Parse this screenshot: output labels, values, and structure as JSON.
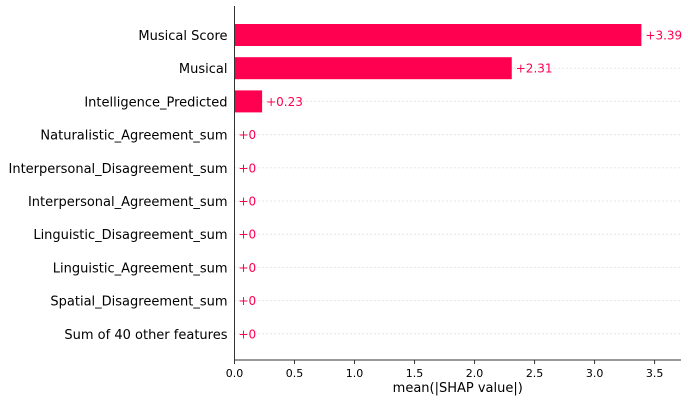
{
  "chart_data": {
    "type": "bar",
    "orientation": "horizontal",
    "categories": [
      "Musical Score",
      "Musical",
      "Intelligence_Predicted",
      "Naturalistic_Agreement_sum",
      "Interpersonal_Disagreement_sum",
      "Interpersonal_Agreement_sum",
      "Linguistic_Disagreement_sum",
      "Linguistic_Agreement_sum",
      "Spatial_Disagreement_sum",
      "Sum of 40 other features"
    ],
    "values": [
      3.39,
      2.31,
      0.23,
      0,
      0,
      0,
      0,
      0,
      0,
      0
    ],
    "value_labels": [
      "+3.39",
      "+2.31",
      "+0.23",
      "+0",
      "+0",
      "+0",
      "+0",
      "+0",
      "+0",
      "+0"
    ],
    "xlabel": "mean(|SHAP value|)",
    "xticks": [
      "0.0",
      "0.5",
      "1.0",
      "1.5",
      "2.0",
      "2.5",
      "3.0",
      "3.5"
    ],
    "xtick_values": [
      0,
      0.5,
      1.0,
      1.5,
      2.0,
      2.5,
      3.0,
      3.5
    ],
    "xlim": [
      0,
      3.72
    ],
    "grid": "horizontal dotted lines per row",
    "colors": {
      "bar": "#ff0051",
      "label": "#ff0051",
      "grid": "#cccccc",
      "axis": "#333333"
    }
  }
}
